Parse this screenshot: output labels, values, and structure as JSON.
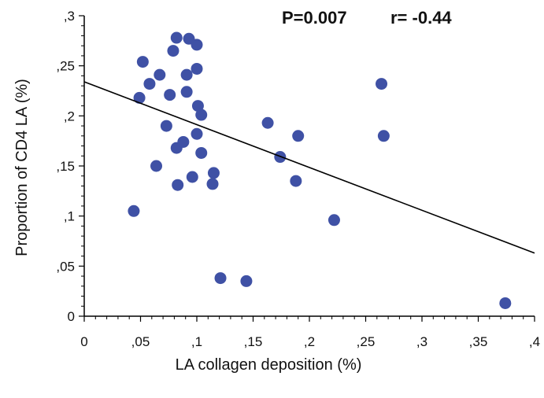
{
  "chart_data": {
    "type": "scatter",
    "title": "",
    "xlabel": "LA collagen deposition (%)",
    "ylabel": "Proportion of CD4 LA  (%)",
    "xlim": [
      0,
      0.4
    ],
    "ylim": [
      0,
      0.3
    ],
    "x_ticks": [
      0,
      0.05,
      0.1,
      0.15,
      0.2,
      0.25,
      0.3,
      0.35,
      0.4
    ],
    "x_tick_labels": [
      "0",
      ",05",
      ",1",
      ",15",
      ",2",
      ",25",
      ",3",
      ",35",
      ",4"
    ],
    "y_ticks": [
      0,
      0.05,
      0.1,
      0.15,
      0.2,
      0.25,
      0.3
    ],
    "y_tick_labels": [
      "0",
      ",05",
      ",1",
      ",15",
      ",2",
      ",25",
      ",3"
    ],
    "grid": false,
    "annotations": {
      "p_value": "P=0.007",
      "r_value": "r= -0.44"
    },
    "marker_color": "#3f51a5",
    "line_color": "#000000",
    "regression_line": {
      "x": [
        0,
        0.4
      ],
      "y": [
        0.234,
        0.063
      ]
    },
    "points": [
      {
        "x": 0.044,
        "y": 0.105
      },
      {
        "x": 0.049,
        "y": 0.218
      },
      {
        "x": 0.052,
        "y": 0.254
      },
      {
        "x": 0.058,
        "y": 0.232
      },
      {
        "x": 0.064,
        "y": 0.15
      },
      {
        "x": 0.067,
        "y": 0.241
      },
      {
        "x": 0.073,
        "y": 0.19
      },
      {
        "x": 0.076,
        "y": 0.221
      },
      {
        "x": 0.079,
        "y": 0.265
      },
      {
        "x": 0.082,
        "y": 0.278
      },
      {
        "x": 0.082,
        "y": 0.168
      },
      {
        "x": 0.083,
        "y": 0.131
      },
      {
        "x": 0.088,
        "y": 0.174
      },
      {
        "x": 0.091,
        "y": 0.241
      },
      {
        "x": 0.091,
        "y": 0.224
      },
      {
        "x": 0.093,
        "y": 0.277
      },
      {
        "x": 0.096,
        "y": 0.139
      },
      {
        "x": 0.1,
        "y": 0.182
      },
      {
        "x": 0.1,
        "y": 0.247
      },
      {
        "x": 0.1,
        "y": 0.271
      },
      {
        "x": 0.101,
        "y": 0.21
      },
      {
        "x": 0.104,
        "y": 0.163
      },
      {
        "x": 0.104,
        "y": 0.201
      },
      {
        "x": 0.114,
        "y": 0.132
      },
      {
        "x": 0.115,
        "y": 0.143
      },
      {
        "x": 0.121,
        "y": 0.038
      },
      {
        "x": 0.144,
        "y": 0.035
      },
      {
        "x": 0.163,
        "y": 0.193
      },
      {
        "x": 0.174,
        "y": 0.159
      },
      {
        "x": 0.188,
        "y": 0.135
      },
      {
        "x": 0.19,
        "y": 0.18
      },
      {
        "x": 0.222,
        "y": 0.096
      },
      {
        "x": 0.264,
        "y": 0.232
      },
      {
        "x": 0.266,
        "y": 0.18
      },
      {
        "x": 0.374,
        "y": 0.013
      }
    ]
  }
}
